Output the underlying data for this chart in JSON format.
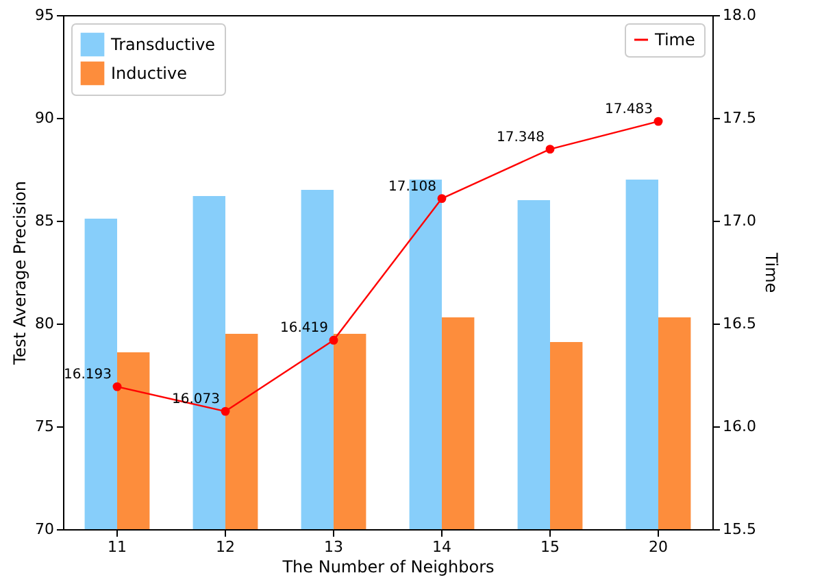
{
  "chart_data": {
    "type": "bar",
    "xlabel": "The Number of Neighbors",
    "ylabel": "Test Average Precision",
    "y2label": "Time",
    "categories": [
      "11",
      "12",
      "13",
      "14",
      "15",
      "20"
    ],
    "series": [
      {
        "name": "Transductive",
        "color": "#87cefa",
        "values": [
          85.1,
          86.2,
          86.5,
          87.0,
          86.0,
          87.0
        ]
      },
      {
        "name": "Inductive",
        "color": "#fd8d3c",
        "values": [
          78.6,
          79.5,
          79.5,
          80.3,
          79.1,
          80.3
        ]
      },
      {
        "name": "Time",
        "type": "line",
        "axis": "y2",
        "color": "#ff0000",
        "values": [
          16.193,
          16.073,
          16.419,
          17.108,
          17.348,
          17.483
        ],
        "value_labels": [
          "16.193",
          "16.073",
          "16.419",
          "17.108",
          "17.348",
          "17.483"
        ],
        "marker": "circle"
      }
    ],
    "ylim": [
      70,
      95
    ],
    "yticks": [
      70,
      75,
      80,
      85,
      90,
      95
    ],
    "y2lim": [
      15.5,
      18.0
    ],
    "y2ticks": [
      {
        "value": 15.5,
        "label": "15.5"
      },
      {
        "value": 16,
        "label": "16.0"
      },
      {
        "value": 16.5,
        "label": "16.5"
      },
      {
        "value": 17,
        "label": "17.0"
      },
      {
        "value": 17.5,
        "label": "17.5"
      },
      {
        "value": 18,
        "label": "18.0"
      }
    ],
    "legend": "top",
    "grid": false
  }
}
